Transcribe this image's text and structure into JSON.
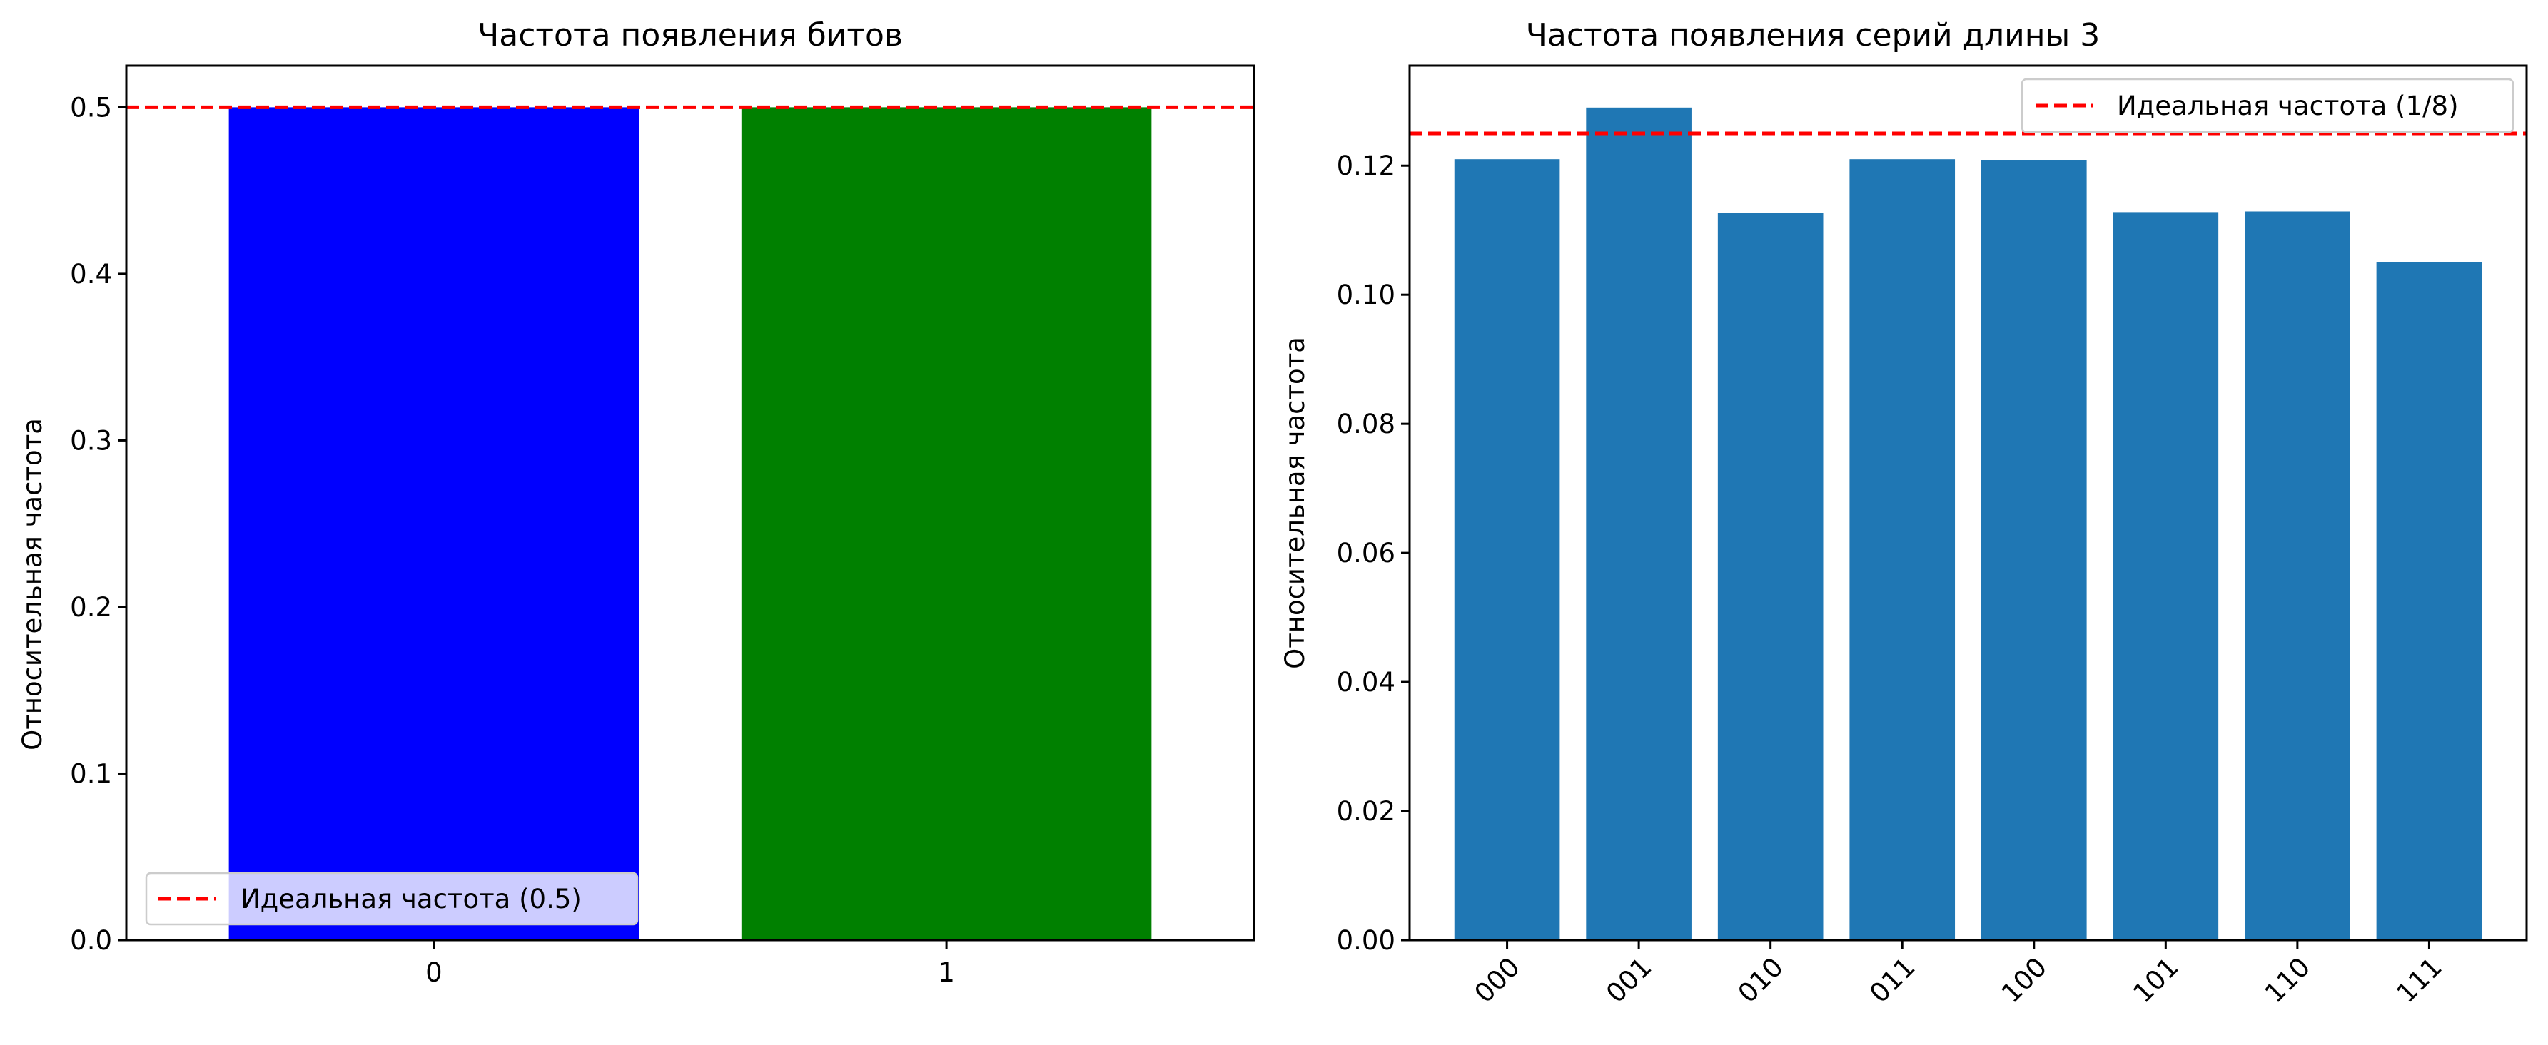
{
  "chart_data": [
    {
      "type": "bar",
      "title": "Частота появления битов",
      "xlabel": "",
      "ylabel": "Относительная частота",
      "categories": [
        "0",
        "1"
      ],
      "values": [
        0.5,
        0.5
      ],
      "bar_colors": [
        "#0000ff",
        "#008000"
      ],
      "ylim": [
        0,
        0.525
      ],
      "yticks": [
        "0.0",
        "0.1",
        "0.2",
        "0.3",
        "0.4",
        "0.5"
      ],
      "reference_line": {
        "value": 0.5,
        "color": "#ff0000",
        "style": "dashed",
        "label": "Идеальная частота (0.5)"
      },
      "legend_position": "lower-left",
      "grid": false
    },
    {
      "type": "bar",
      "title": "Частота появления серий длины 3",
      "xlabel": "",
      "ylabel": "Относительная частота",
      "categories": [
        "000",
        "001",
        "010",
        "011",
        "100",
        "101",
        "110",
        "111"
      ],
      "values": [
        0.121,
        0.129,
        0.1127,
        0.121,
        0.1208,
        0.1128,
        0.1129,
        0.105
      ],
      "bar_colors": [
        "#1f77b4"
      ],
      "ylim": [
        0,
        0.1355
      ],
      "yticks": [
        "0.00",
        "0.02",
        "0.04",
        "0.06",
        "0.08",
        "0.10",
        "0.12"
      ],
      "reference_line": {
        "value": 0.125,
        "color": "#ff0000",
        "style": "dashed",
        "label": "Идеальная частота (1/8)"
      },
      "legend_position": "upper-right",
      "grid": false
    }
  ]
}
